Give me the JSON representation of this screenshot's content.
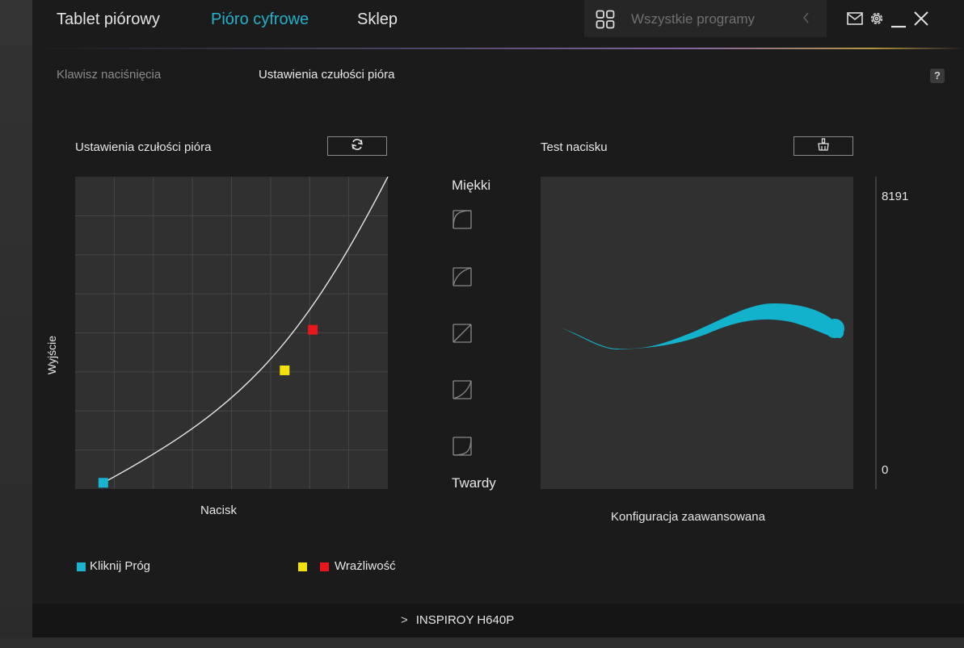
{
  "nav": {
    "tabs": [
      {
        "label": "Tablet piórowy"
      },
      {
        "label": "Pióro cyfrowe"
      },
      {
        "label": "Sklep"
      }
    ],
    "programs_label": "Wszystkie programy"
  },
  "subtabs": [
    {
      "label": "Klawisz naciśnięcia"
    },
    {
      "label": "Ustawienia czułości pióra"
    }
  ],
  "help_label": "?",
  "pressure_curve": {
    "title": "Ustawienia czułości pióra",
    "ylabel": "Wyjście",
    "xlabel": "Nacisk",
    "click_threshold": {
      "pressure": 0.09,
      "output": 0.02
    },
    "sensitivity_points": [
      {
        "color": "#f2e10a",
        "pressure": 0.67,
        "output": 0.38
      },
      {
        "color": "#e8171b",
        "pressure": 0.76,
        "output": 0.51
      }
    ]
  },
  "presets": {
    "soft_label": "Miękki",
    "hard_label": "Twardy"
  },
  "pressure_test": {
    "title": "Test nacisku",
    "max_value": "8191",
    "min_value": "0",
    "advanced_label": "Konfiguracja zaawansowana"
  },
  "legend": {
    "click_label": "Kliknij Próg",
    "sensitivity_label": "Wrażliwość"
  },
  "footer": {
    "device_label": "INSPIROY H640P"
  },
  "colors": {
    "accent": "#22b1c9",
    "threshold": "#18b4d0",
    "soft_point": "#f2e10a",
    "hard_point": "#e8171b"
  }
}
